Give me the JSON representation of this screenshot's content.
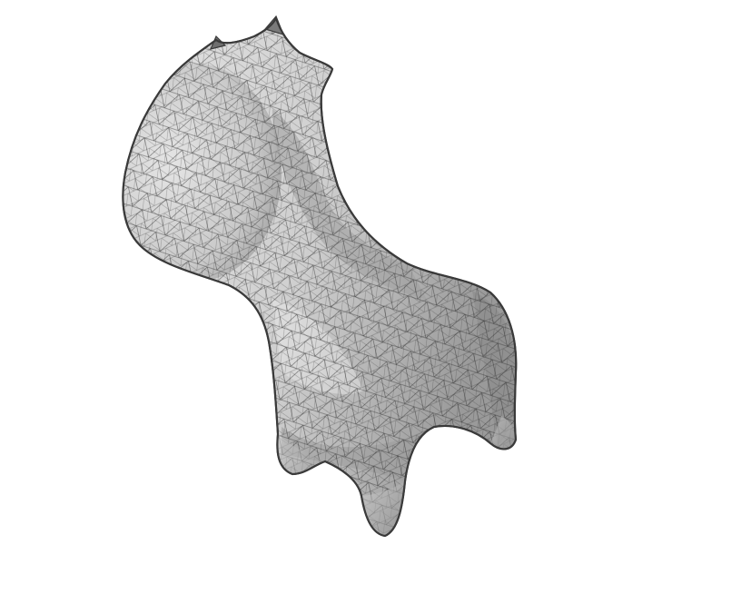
{
  "scene": {
    "background_color": "#ffffff",
    "subject": "mesh-model",
    "colors": {
      "surface_light": "#d9d9d9",
      "surface_mid": "#bfbfbf",
      "surface_dark": "#8f8f8f",
      "wire": "#2b2b2b",
      "outline": "#3a3a3a"
    }
  }
}
